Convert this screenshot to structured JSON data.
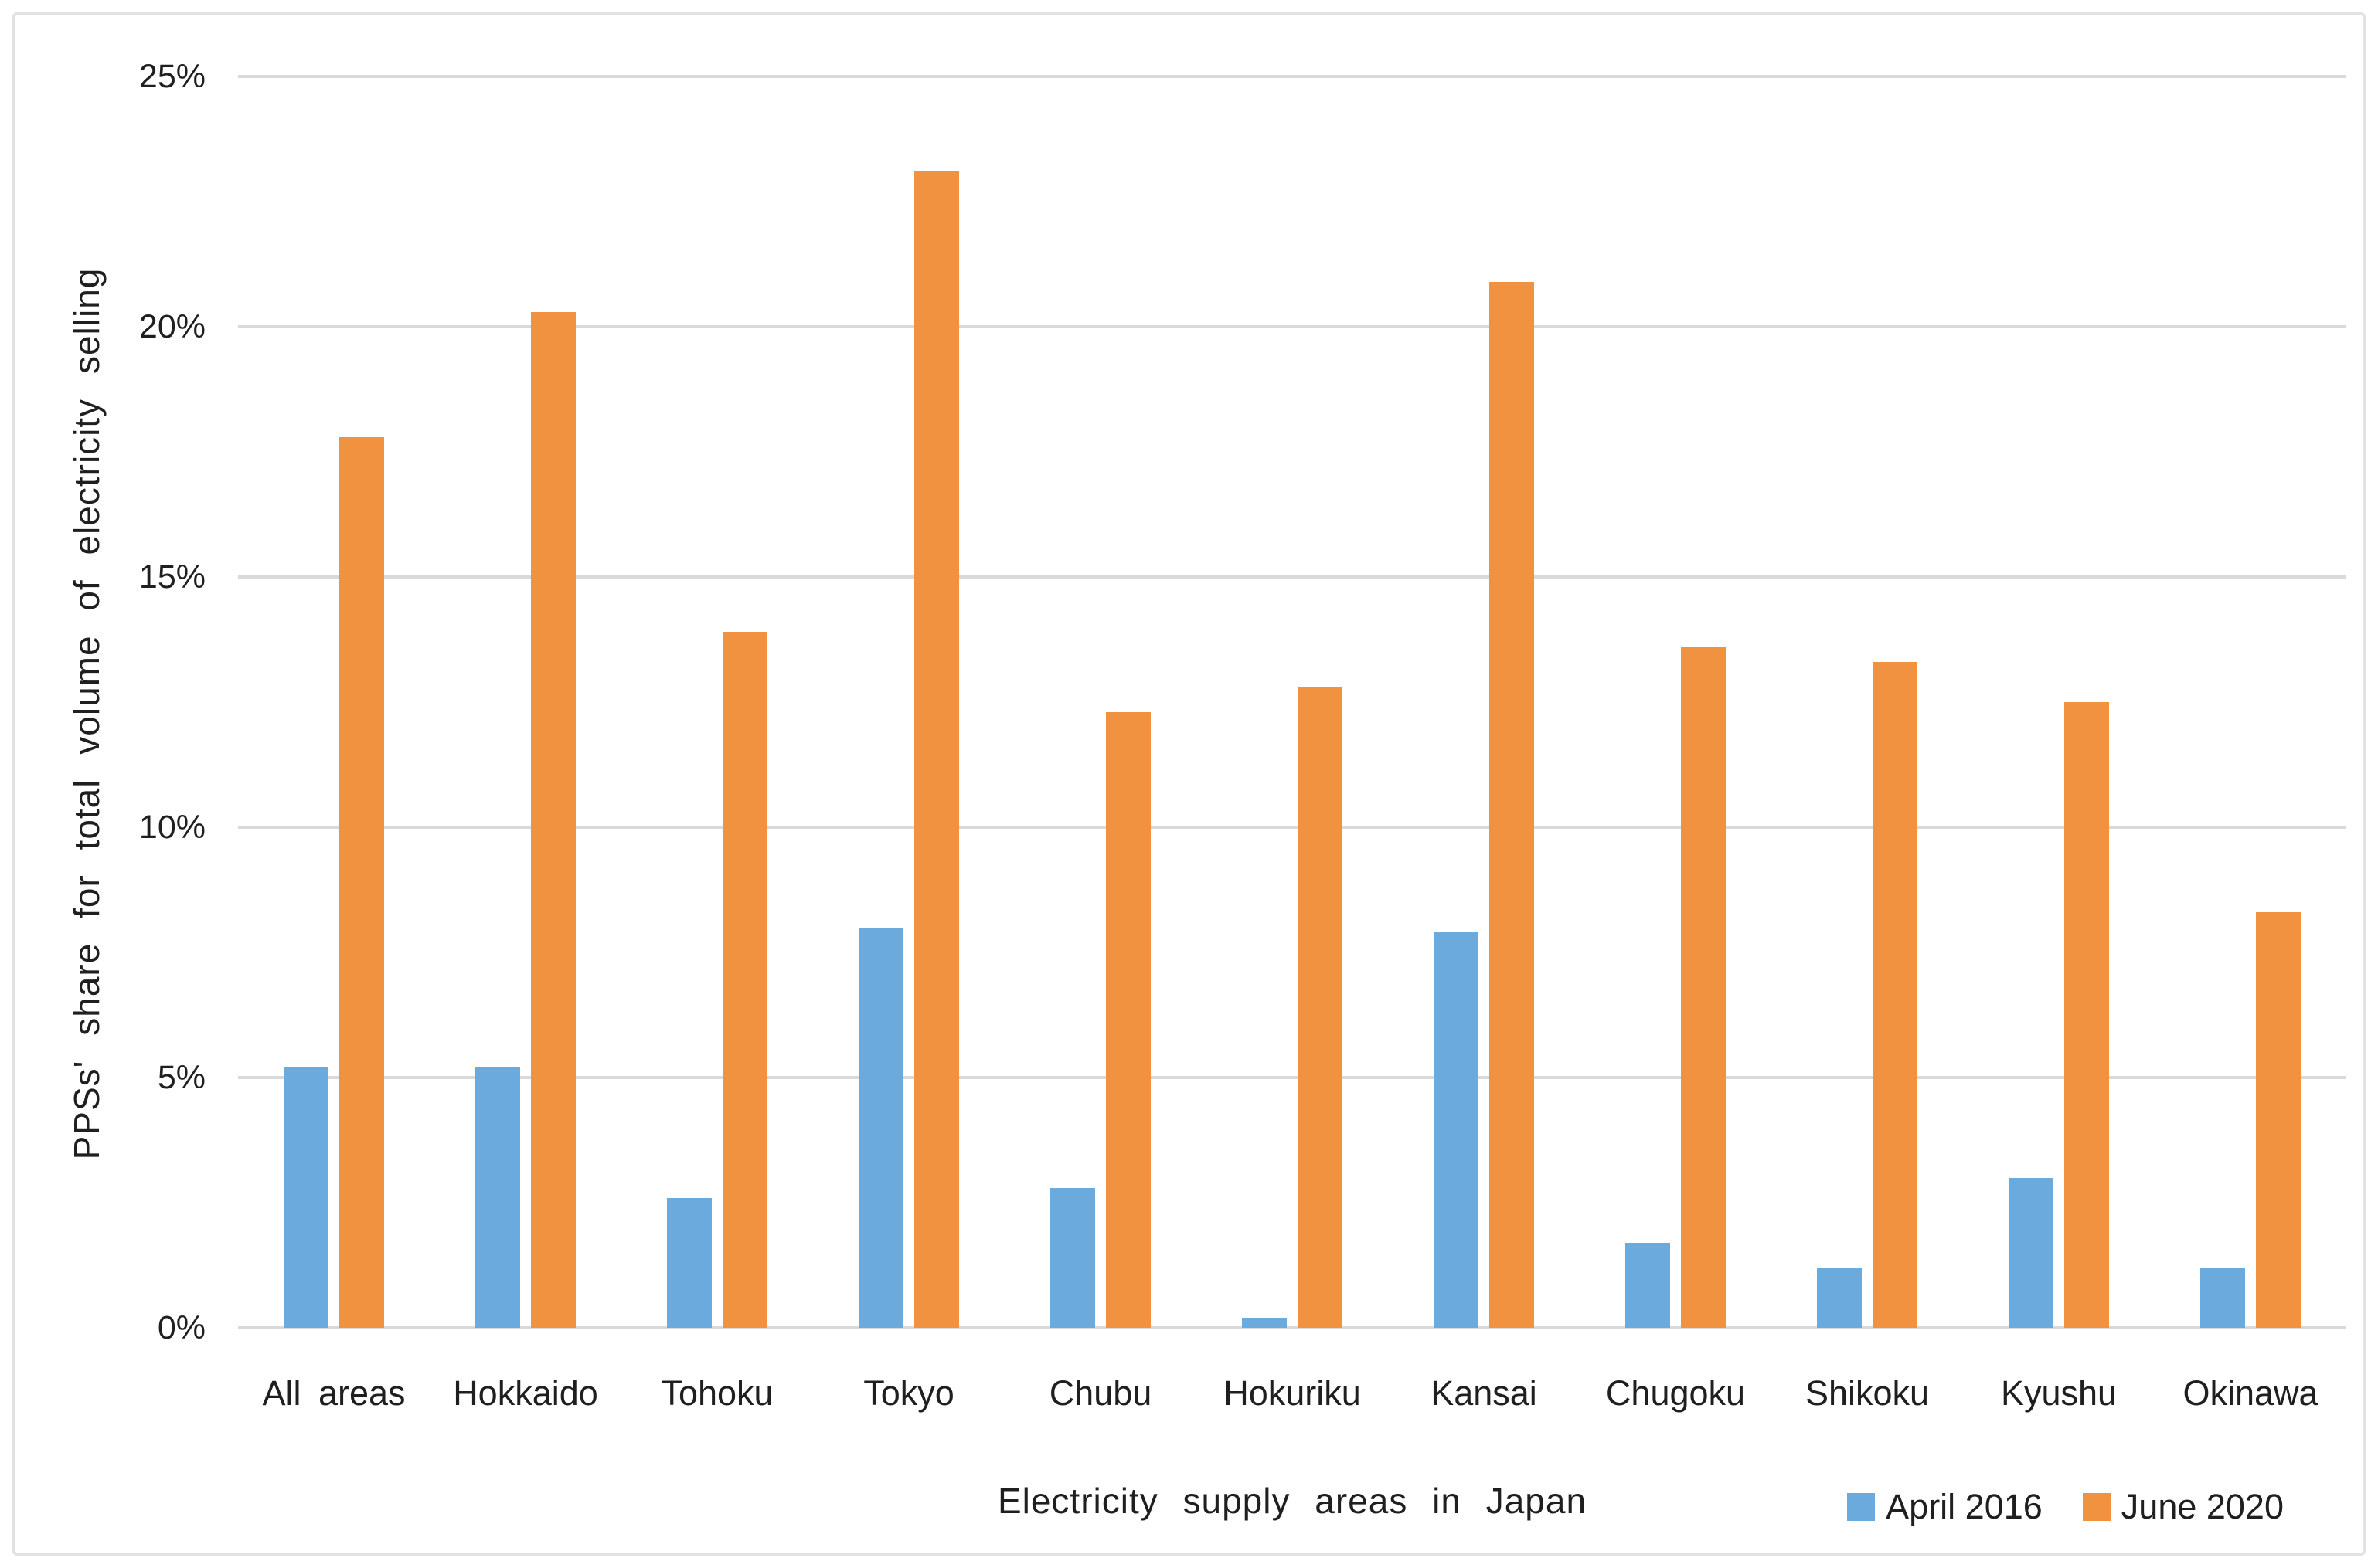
{
  "chart_data": {
    "type": "bar",
    "title": "",
    "categories": [
      "All areas",
      "Hokkaido",
      "Tohoku",
      "Tokyo",
      "Chubu",
      "Hokuriku",
      "Kansai",
      "Chugoku",
      "Shikoku",
      "Kyushu",
      "Okinawa"
    ],
    "series": [
      {
        "name": "April 2016",
        "color": "#6baadc",
        "values": [
          5.2,
          5.2,
          2.6,
          8.0,
          2.8,
          0.2,
          7.9,
          1.7,
          1.2,
          3.0,
          1.2
        ]
      },
      {
        "name": "June 2020",
        "color": "#f0923f",
        "values": [
          17.8,
          20.3,
          13.9,
          23.1,
          12.3,
          12.8,
          20.9,
          13.6,
          13.3,
          12.5,
          8.3
        ]
      }
    ],
    "xlabel": "Electricity supply areas in Japan",
    "ylabel": "PPSs' share for total volume of electricity selling",
    "y_ticks": [
      "0%",
      "5%",
      "10%",
      "15%",
      "20%",
      "25%"
    ],
    "y_tick_values": [
      0,
      5,
      10,
      15,
      20,
      25
    ],
    "ylim": [
      0,
      25
    ],
    "grid": true,
    "legend_position": "bottom-right",
    "gridline_color": "#d9d9d9",
    "background_color": "#ffffff",
    "border_color": "#e2e2e2"
  }
}
